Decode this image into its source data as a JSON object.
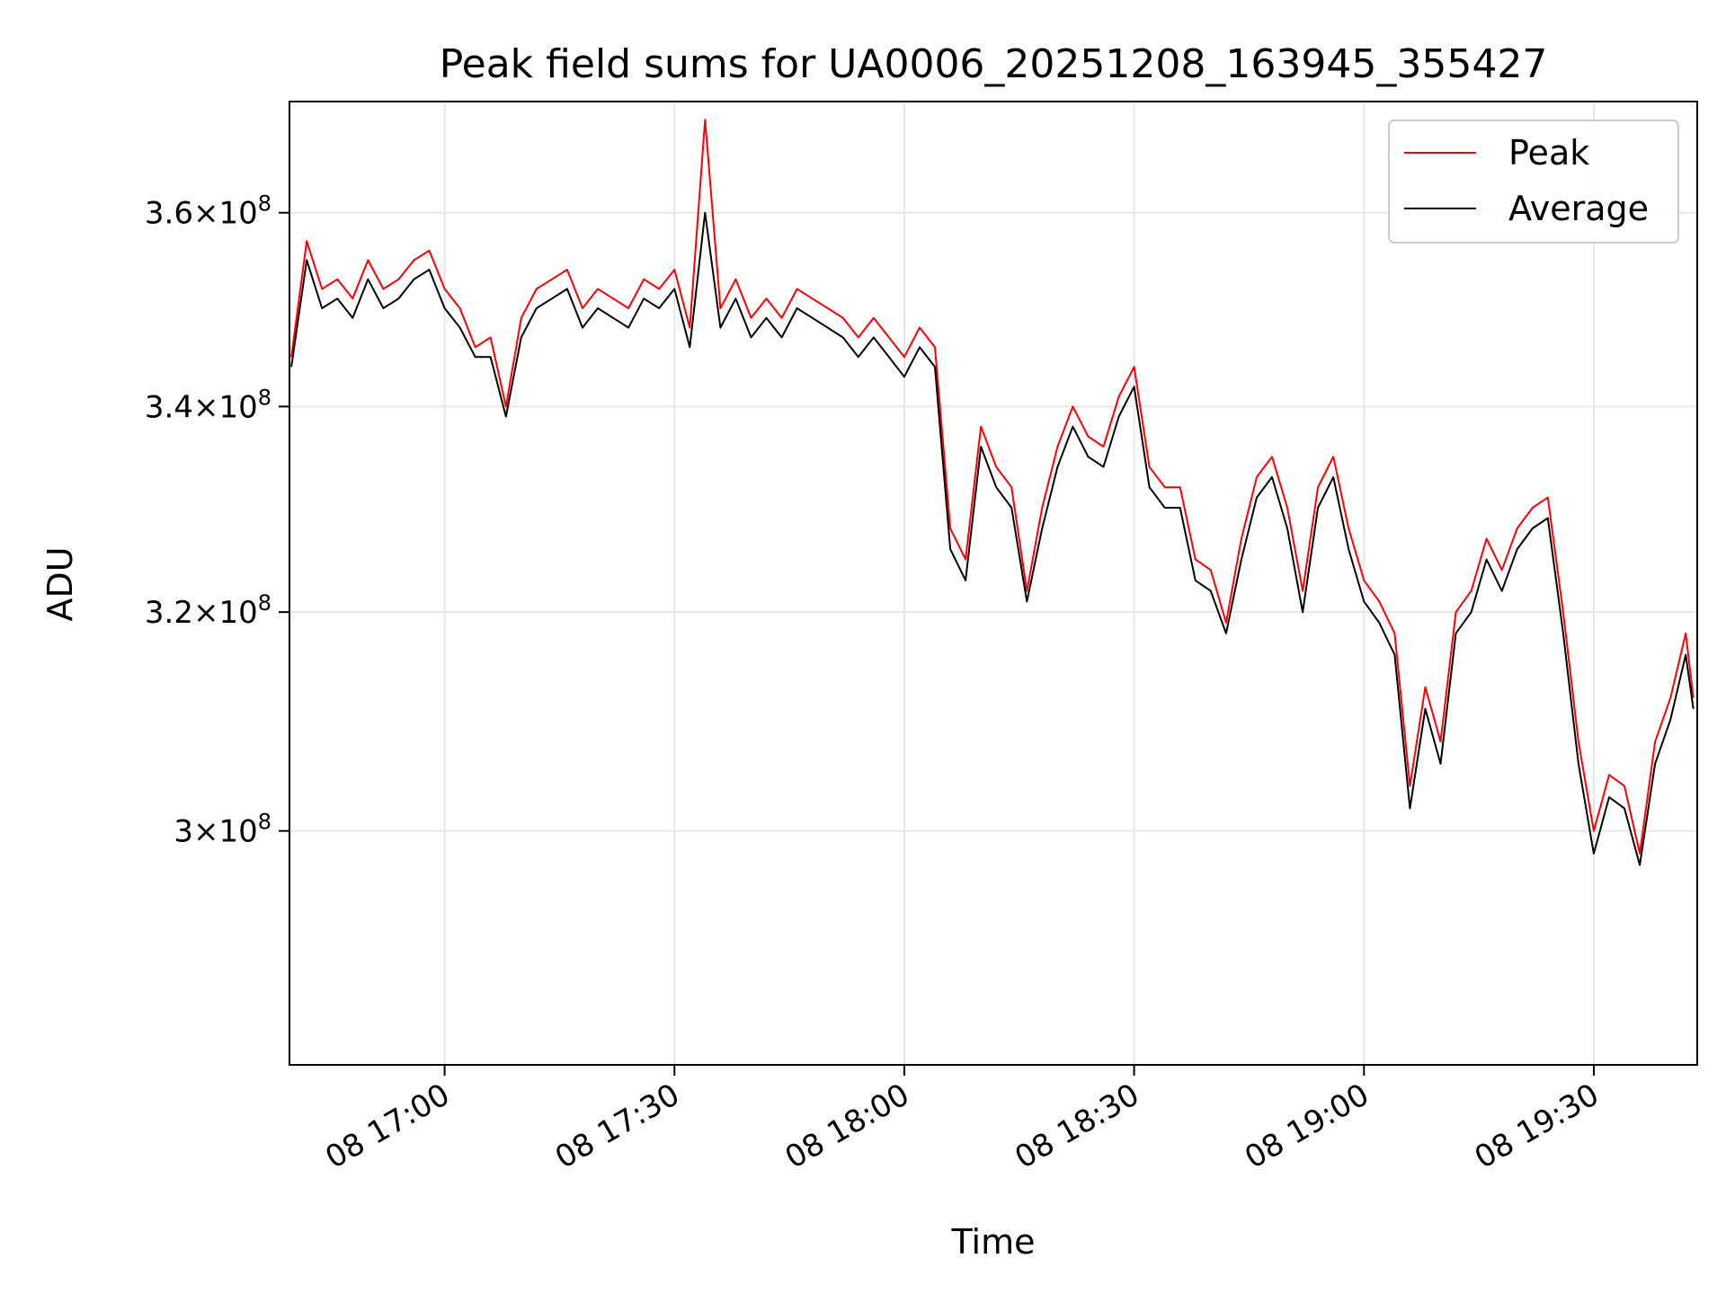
{
  "chart_data": {
    "type": "line",
    "title": "Peak field sums for UA0006_20251208_163945_355427",
    "xlabel": "Time",
    "ylabel": "ADU",
    "y_scale": "log",
    "xlim": [
      "2025-12-08 16:39:45",
      "2025-12-08 19:43:30"
    ],
    "ylim": [
      280000000.0,
      372000000.0
    ],
    "x_ticks": [
      {
        "value": "2025-12-08 17:00",
        "label": "08 17:00"
      },
      {
        "value": "2025-12-08 17:30",
        "label": "08 17:30"
      },
      {
        "value": "2025-12-08 18:00",
        "label": "08 18:00"
      },
      {
        "value": "2025-12-08 18:30",
        "label": "08 18:30"
      },
      {
        "value": "2025-12-08 19:00",
        "label": "08 19:00"
      },
      {
        "value": "2025-12-08 19:30",
        "label": "08 19:30"
      }
    ],
    "y_ticks": [
      {
        "value": 300000000.0,
        "mantissa": "3",
        "exponent": "8"
      },
      {
        "value": 320000000.0,
        "mantissa": "3.2",
        "exponent": "8"
      },
      {
        "value": 340000000.0,
        "mantissa": "3.4",
        "exponent": "8"
      },
      {
        "value": 360000000.0,
        "mantissa": "3.6",
        "exponent": "8"
      }
    ],
    "grid": true,
    "legend": "top-right",
    "x": [
      "16:40",
      "16:42",
      "16:44",
      "16:46",
      "16:48",
      "16:50",
      "16:52",
      "16:54",
      "16:56",
      "16:58",
      "17:00",
      "17:02",
      "17:04",
      "17:06",
      "17:08",
      "17:10",
      "17:12",
      "17:14",
      "17:16",
      "17:18",
      "17:20",
      "17:22",
      "17:24",
      "17:26",
      "17:28",
      "17:30",
      "17:32",
      "17:34",
      "17:36",
      "17:38",
      "17:40",
      "17:42",
      "17:44",
      "17:46",
      "17:48",
      "17:50",
      "17:52",
      "17:54",
      "17:56",
      "17:58",
      "18:00",
      "18:02",
      "18:04",
      "18:06",
      "18:08",
      "18:10",
      "18:12",
      "18:14",
      "18:16",
      "18:18",
      "18:20",
      "18:22",
      "18:24",
      "18:26",
      "18:28",
      "18:30",
      "18:32",
      "18:34",
      "18:36",
      "18:38",
      "18:40",
      "18:42",
      "18:44",
      "18:46",
      "18:48",
      "18:50",
      "18:52",
      "18:54",
      "18:56",
      "18:58",
      "19:00",
      "19:02",
      "19:04",
      "19:06",
      "19:08",
      "19:10",
      "19:12",
      "19:14",
      "19:16",
      "19:18",
      "19:20",
      "19:22",
      "19:24",
      "19:26",
      "19:28",
      "19:30",
      "19:32",
      "19:34",
      "19:36",
      "19:38",
      "19:40",
      "19:42",
      "19:43"
    ],
    "series": [
      {
        "name": "Peak",
        "color": "#ff0000",
        "values": [
          345000000.0,
          357000000.0,
          352000000.0,
          353000000.0,
          351000000.0,
          355000000.0,
          352000000.0,
          353000000.0,
          355000000.0,
          356000000.0,
          352000000.0,
          350000000.0,
          346000000.0,
          347000000.0,
          340000000.0,
          349000000.0,
          352000000.0,
          353000000.0,
          354000000.0,
          350000000.0,
          352000000.0,
          351000000.0,
          350000000.0,
          353000000.0,
          352000000.0,
          354000000.0,
          348000000.0,
          370000000.0,
          350000000.0,
          353000000.0,
          349000000.0,
          351000000.0,
          349000000.0,
          352000000.0,
          351000000.0,
          350000000.0,
          349000000.0,
          347000000.0,
          349000000.0,
          347000000.0,
          345000000.0,
          348000000.0,
          346000000.0,
          328000000.0,
          325000000.0,
          338000000.0,
          334000000.0,
          332000000.0,
          322000000.0,
          330000000.0,
          336000000.0,
          340000000.0,
          337000000.0,
          336000000.0,
          341000000.0,
          344000000.0,
          334000000.0,
          332000000.0,
          332000000.0,
          325000000.0,
          324000000.0,
          319000000.0,
          327000000.0,
          333000000.0,
          335000000.0,
          330000000.0,
          322000000.0,
          332000000.0,
          335000000.0,
          328000000.0,
          323000000.0,
          321000000.0,
          318000000.0,
          304000000.0,
          313000000.0,
          308000000.0,
          320000000.0,
          322000000.0,
          327000000.0,
          324000000.0,
          328000000.0,
          330000000.0,
          331000000.0,
          320000000.0,
          308000000.0,
          300000000.0,
          305000000.0,
          304000000.0,
          298000000.0,
          308000000.0,
          312000000.0,
          318000000.0,
          312000000.0
        ]
      },
      {
        "name": "Average",
        "color": "#000000",
        "values": [
          344000000.0,
          355000000.0,
          350000000.0,
          351000000.0,
          349000000.0,
          353000000.0,
          350000000.0,
          351000000.0,
          353000000.0,
          354000000.0,
          350000000.0,
          348000000.0,
          345000000.0,
          345000000.0,
          339000000.0,
          347000000.0,
          350000000.0,
          351000000.0,
          352000000.0,
          348000000.0,
          350000000.0,
          349000000.0,
          348000000.0,
          351000000.0,
          350000000.0,
          352000000.0,
          346000000.0,
          360000000.0,
          348000000.0,
          351000000.0,
          347000000.0,
          349000000.0,
          347000000.0,
          350000000.0,
          349000000.0,
          348000000.0,
          347000000.0,
          345000000.0,
          347000000.0,
          345000000.0,
          343000000.0,
          346000000.0,
          344000000.0,
          326000000.0,
          323000000.0,
          336000000.0,
          332000000.0,
          330000000.0,
          321000000.0,
          328000000.0,
          334000000.0,
          338000000.0,
          335000000.0,
          334000000.0,
          339000000.0,
          342000000.0,
          332000000.0,
          330000000.0,
          330000000.0,
          323000000.0,
          322000000.0,
          318000000.0,
          325000000.0,
          331000000.0,
          333000000.0,
          328000000.0,
          320000000.0,
          330000000.0,
          333000000.0,
          326000000.0,
          321000000.0,
          319000000.0,
          316000000.0,
          302000000.0,
          311000000.0,
          306000000.0,
          318000000.0,
          320000000.0,
          325000000.0,
          322000000.0,
          326000000.0,
          328000000.0,
          329000000.0,
          318000000.0,
          306000000.0,
          298000000.0,
          303000000.0,
          302000000.0,
          297000000.0,
          306000000.0,
          310000000.0,
          316000000.0,
          311000000.0
        ]
      }
    ]
  }
}
